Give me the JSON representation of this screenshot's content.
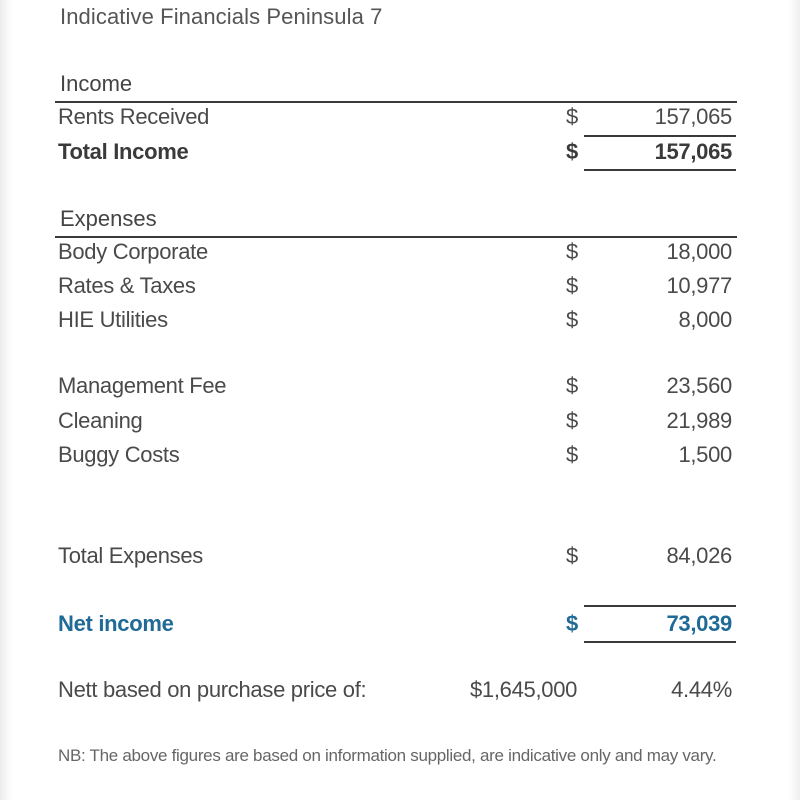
{
  "title": "Indicative Financials Peninsula 7",
  "income": {
    "heading": "Income",
    "rows": [
      {
        "label": "Rents Received",
        "currency": "$",
        "amount": "157,065"
      }
    ],
    "total": {
      "label": "Total Income",
      "currency": "$",
      "amount": "157,065"
    }
  },
  "expenses": {
    "heading": "Expenses",
    "rows": [
      {
        "label": "Body Corporate",
        "currency": "$",
        "amount": "18,000"
      },
      {
        "label": "Rates & Taxes",
        "currency": "$",
        "amount": "10,977"
      },
      {
        "label": "HIE Utilities",
        "currency": "$",
        "amount": "8,000"
      },
      {
        "label": "Management Fee",
        "currency": "$",
        "amount": "23,560"
      },
      {
        "label": "Cleaning",
        "currency": "$",
        "amount": "21,989"
      },
      {
        "label": "Buggy Costs",
        "currency": "$",
        "amount": "1,500"
      }
    ],
    "total": {
      "label": "Total Expenses",
      "currency": "$",
      "amount": "84,026"
    }
  },
  "net": {
    "label": "Net income",
    "currency": "$",
    "amount": "73,039"
  },
  "yield": {
    "label": "Nett based on purchase price of:",
    "price": "$1,645,000",
    "percent": "4.44%"
  },
  "note": "NB: The above figures are based on information supplied, are indicative only and may vary.",
  "colors": {
    "net_accent": "#1f6a96",
    "text": "#4a4a4a",
    "rule": "#3a3a3a"
  }
}
